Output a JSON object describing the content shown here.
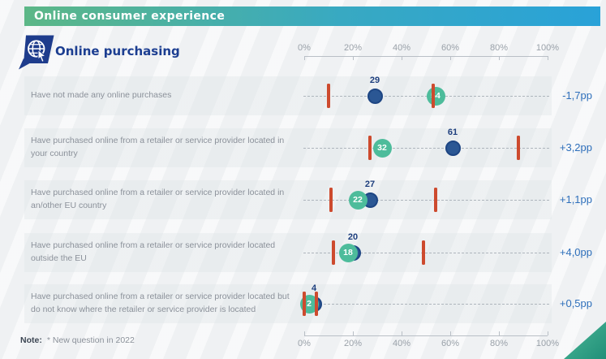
{
  "banner": {
    "title": "Online consumer experience"
  },
  "section": {
    "title": "Online purchasing",
    "icon": "globe-cursor-icon"
  },
  "note": {
    "label": "Note:",
    "text": "* New question in 2022"
  },
  "colors": {
    "banner_green": "#5cb787",
    "banner_blue": "#29a2d8",
    "title_text": "#1c3e91",
    "dot_blue": "#2b5794",
    "dot_teal": "#4dbc9b",
    "range_bar": "#cd4a2e",
    "change_text": "#2e6fbb",
    "row_label_text": "#8b919a"
  },
  "chart_data": {
    "type": "scatter",
    "subtype": "dot-range-rows",
    "axis": {
      "min": 0,
      "max": 100,
      "unit": "%",
      "tick_labels": [
        "0%",
        "20%",
        "40%",
        "60%",
        "80%",
        "100%"
      ],
      "tick_values": [
        0,
        20,
        40,
        60,
        80,
        100
      ],
      "shown_top_and_bottom": true
    },
    "series": [
      {
        "name": "teal-dot",
        "color": "#4dbc9b",
        "value_shown": "inside dot"
      },
      {
        "name": "blue-dot",
        "color": "#2b5794",
        "value_shown": "above dot"
      },
      {
        "name": "range-markers",
        "color": "#cd4a2e",
        "shape": "vertical bar"
      }
    ],
    "rows": [
      {
        "label": "Have not made any online purchases",
        "teal": 54,
        "blue": 29,
        "range": [
          10,
          53
        ],
        "change": "-1,7pp"
      },
      {
        "label": "Have purchased online from a retailer or service provider located in your country",
        "teal": 32,
        "blue": 61,
        "range": [
          27,
          88
        ],
        "change": "+3,2pp"
      },
      {
        "label": "Have purchased online from a retailer or service provider located in an/other EU country",
        "teal": 22,
        "blue": 27,
        "range": [
          11,
          54
        ],
        "change": "+1,1pp"
      },
      {
        "label": "Have purchased online from a retailer or service provider located outside the EU",
        "teal": 18,
        "blue": 20,
        "range": [
          12,
          49
        ],
        "change": "+4,0pp"
      },
      {
        "label": "Have purchased online from a retailer or service provider located but do not know where the retailer or service provider is located",
        "teal": 2,
        "blue": 4,
        "range": [
          0,
          5
        ],
        "change": "+0,5pp"
      }
    ]
  }
}
